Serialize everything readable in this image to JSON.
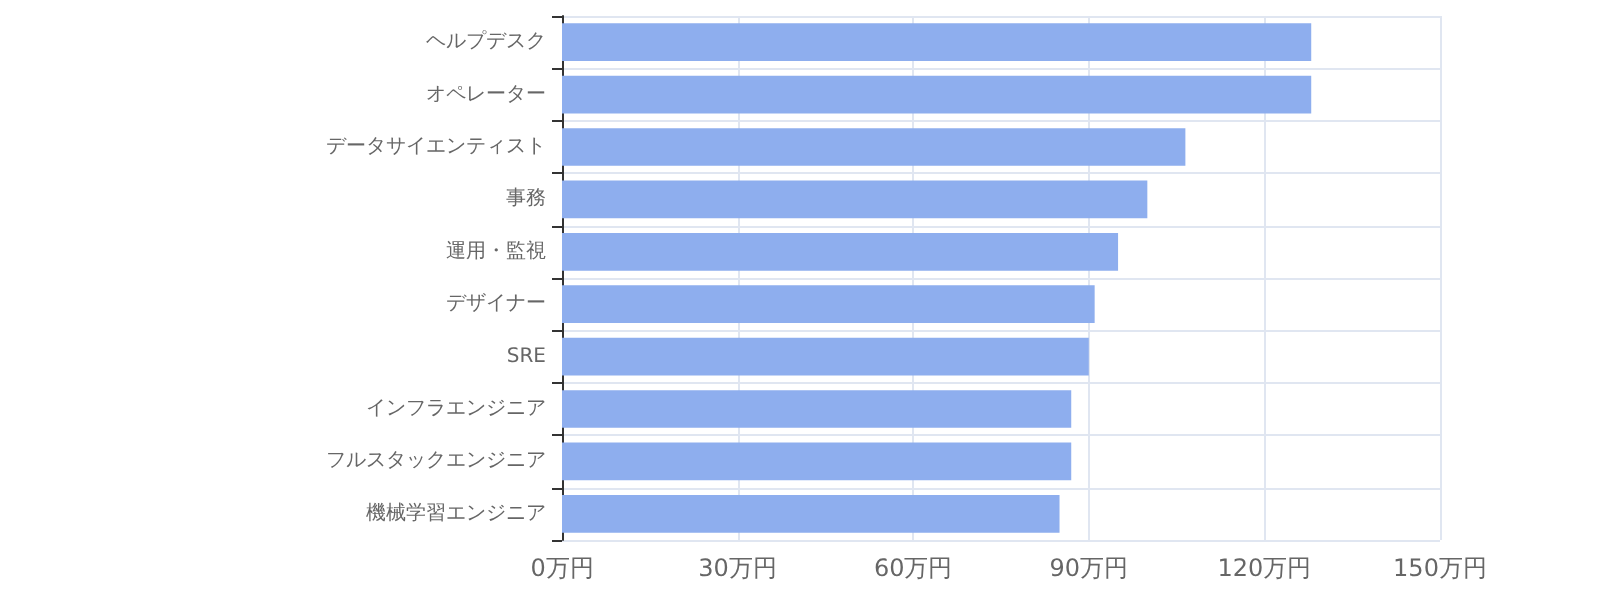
{
  "chart_data": {
    "type": "bar",
    "orientation": "horizontal",
    "categories": [
      "ヘルプデスク",
      "オペレーター",
      "データサイエンティスト",
      "事務",
      "運用・監視",
      "デザイナー",
      "SRE",
      "インフラエンジニア",
      "フルスタックエンジニア",
      "機械学習エンジニア"
    ],
    "values": [
      128,
      128,
      106.5,
      100,
      95,
      91,
      90,
      87,
      87,
      85
    ],
    "color": "#8eaeee",
    "xlim": [
      0,
      150
    ],
    "xticks": [
      {
        "value": 0,
        "label": "0万円"
      },
      {
        "value": 30,
        "label": "30万円"
      },
      {
        "value": 60,
        "label": "60万円"
      },
      {
        "value": 90,
        "label": "90万円"
      },
      {
        "value": 120,
        "label": "120万円"
      },
      {
        "value": 150,
        "label": "150万円"
      }
    ],
    "grid": true
  }
}
